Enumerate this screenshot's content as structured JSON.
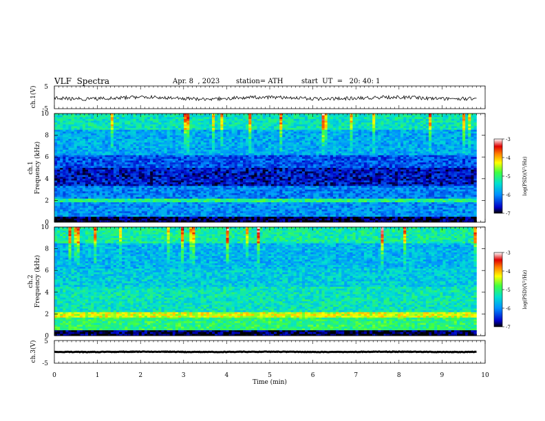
{
  "header": {
    "title": "VLF  Spectra",
    "date": "Apr. 8  , 2023",
    "station": "station= ATH",
    "start": "start  UT  =   20: 40: 1"
  },
  "chart_data": [
    {
      "type": "line",
      "name": "ch1-waveform",
      "ylabel": "ch.1(V)",
      "ylim": [
        -5,
        5
      ],
      "yticks": [
        "5",
        "-5"
      ],
      "xlim": [
        0,
        10
      ],
      "color": "#000000"
    },
    {
      "type": "heatmap",
      "name": "ch1-spectrogram",
      "ylabel_top": "ch.1",
      "ylabel": "Frequency  (kHz)",
      "ylim": [
        0,
        10
      ],
      "yticks": [
        "0",
        "2",
        "4",
        "6",
        "8",
        "10"
      ],
      "xlim": [
        0,
        10
      ],
      "colorbar": {
        "label": "log(PSD)(V²/Hz)",
        "range": [
          -7,
          -3
        ],
        "ticks": [
          "-3",
          "-4",
          "-5",
          "-6",
          "-7"
        ],
        "colors": [
          "#000000",
          "#0000c8",
          "#0090ff",
          "#00e0d0",
          "#40ff40",
          "#ffff00",
          "#ff8000",
          "#e00000",
          "#ffffff"
        ]
      }
    },
    {
      "type": "heatmap",
      "name": "ch2-spectrogram",
      "ylabel_top": "ch.2",
      "ylabel": "Frequency  (kHz)",
      "ylim": [
        0,
        10
      ],
      "yticks": [
        "0",
        "2",
        "4",
        "6",
        "8",
        "10"
      ],
      "xlim": [
        0,
        10
      ],
      "colorbar": {
        "label": "log(PSD)(V²/Hz)",
        "range": [
          -7,
          -3
        ],
        "ticks": [
          "-3",
          "-4",
          "-5",
          "-6",
          "-7"
        ],
        "colors": [
          "#000000",
          "#0000c8",
          "#0090ff",
          "#00e0d0",
          "#40ff40",
          "#ffff00",
          "#ff8000",
          "#e00000",
          "#ffffff"
        ]
      }
    },
    {
      "type": "line",
      "name": "ch3-waveform",
      "ylabel": "ch.3(V)",
      "ylim": [
        -5,
        5
      ],
      "yticks": [
        "5",
        "-5"
      ],
      "xlim": [
        0,
        10
      ],
      "color": "#000000"
    }
  ],
  "xaxis": {
    "label": "Time  (min)",
    "ticks": [
      "0",
      "1",
      "2",
      "3",
      "4",
      "5",
      "6",
      "7",
      "8",
      "9",
      "10"
    ],
    "range": [
      0,
      10
    ]
  }
}
